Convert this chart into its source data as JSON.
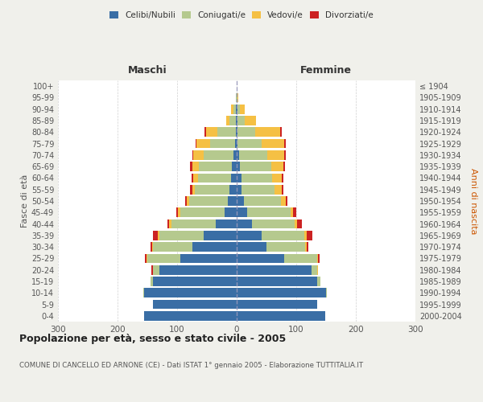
{
  "age_groups": [
    "0-4",
    "5-9",
    "10-14",
    "15-19",
    "20-24",
    "25-29",
    "30-34",
    "35-39",
    "40-44",
    "45-49",
    "50-54",
    "55-59",
    "60-64",
    "65-69",
    "70-74",
    "75-79",
    "80-84",
    "85-89",
    "90-94",
    "95-99",
    "100+"
  ],
  "birth_years": [
    "2000-2004",
    "1995-1999",
    "1990-1994",
    "1985-1989",
    "1980-1984",
    "1975-1979",
    "1970-1974",
    "1965-1969",
    "1960-1964",
    "1955-1959",
    "1950-1954",
    "1945-1949",
    "1940-1944",
    "1935-1939",
    "1930-1934",
    "1925-1929",
    "1920-1924",
    "1915-1919",
    "1910-1914",
    "1905-1909",
    "≤ 1904"
  ],
  "maschi": {
    "celibi": [
      155,
      140,
      155,
      140,
      130,
      95,
      75,
      55,
      35,
      20,
      15,
      12,
      10,
      8,
      5,
      3,
      2,
      2,
      1,
      0,
      0
    ],
    "coniugati": [
      0,
      0,
      2,
      5,
      10,
      55,
      65,
      75,
      75,
      75,
      65,
      58,
      55,
      55,
      50,
      42,
      30,
      10,
      4,
      1,
      0
    ],
    "vedovi": [
      0,
      0,
      0,
      0,
      1,
      2,
      2,
      2,
      3,
      3,
      4,
      5,
      8,
      12,
      18,
      22,
      20,
      6,
      4,
      1,
      0
    ],
    "divorziati": [
      0,
      0,
      0,
      0,
      2,
      2,
      3,
      8,
      3,
      4,
      3,
      4,
      3,
      3,
      2,
      2,
      2,
      0,
      0,
      0,
      0
    ]
  },
  "femmine": {
    "nubili": [
      148,
      135,
      150,
      135,
      125,
      80,
      50,
      42,
      25,
      18,
      12,
      8,
      8,
      6,
      4,
      2,
      1,
      1,
      1,
      0,
      0
    ],
    "coniugate": [
      0,
      0,
      2,
      5,
      10,
      55,
      65,
      72,
      72,
      72,
      62,
      55,
      52,
      52,
      48,
      40,
      30,
      12,
      5,
      1,
      0
    ],
    "vedove": [
      0,
      0,
      0,
      0,
      1,
      2,
      2,
      3,
      4,
      5,
      8,
      12,
      15,
      20,
      28,
      38,
      42,
      20,
      8,
      2,
      0
    ],
    "divorziate": [
      0,
      0,
      0,
      0,
      1,
      2,
      3,
      10,
      8,
      5,
      3,
      3,
      3,
      3,
      2,
      2,
      2,
      0,
      0,
      0,
      0
    ]
  },
  "colors": {
    "celibi": "#3a6ea5",
    "coniugati": "#b5c98e",
    "vedovi": "#f5c044",
    "divorziati": "#cc2222"
  },
  "title": "Popolazione per età, sesso e stato civile - 2005",
  "subtitle": "COMUNE DI CANCELLO ED ARNONE (CE) - Dati ISTAT 1° gennaio 2005 - Elaborazione TUTTITALIA.IT",
  "ylabel_left": "Fasce di età",
  "ylabel_right": "Anni di nascita",
  "xlabel_left": "Maschi",
  "xlabel_right": "Femmine",
  "xlim": 300,
  "bg_color": "#f0f0eb",
  "plot_bg": "#ffffff",
  "grid_color": "#cccccc"
}
